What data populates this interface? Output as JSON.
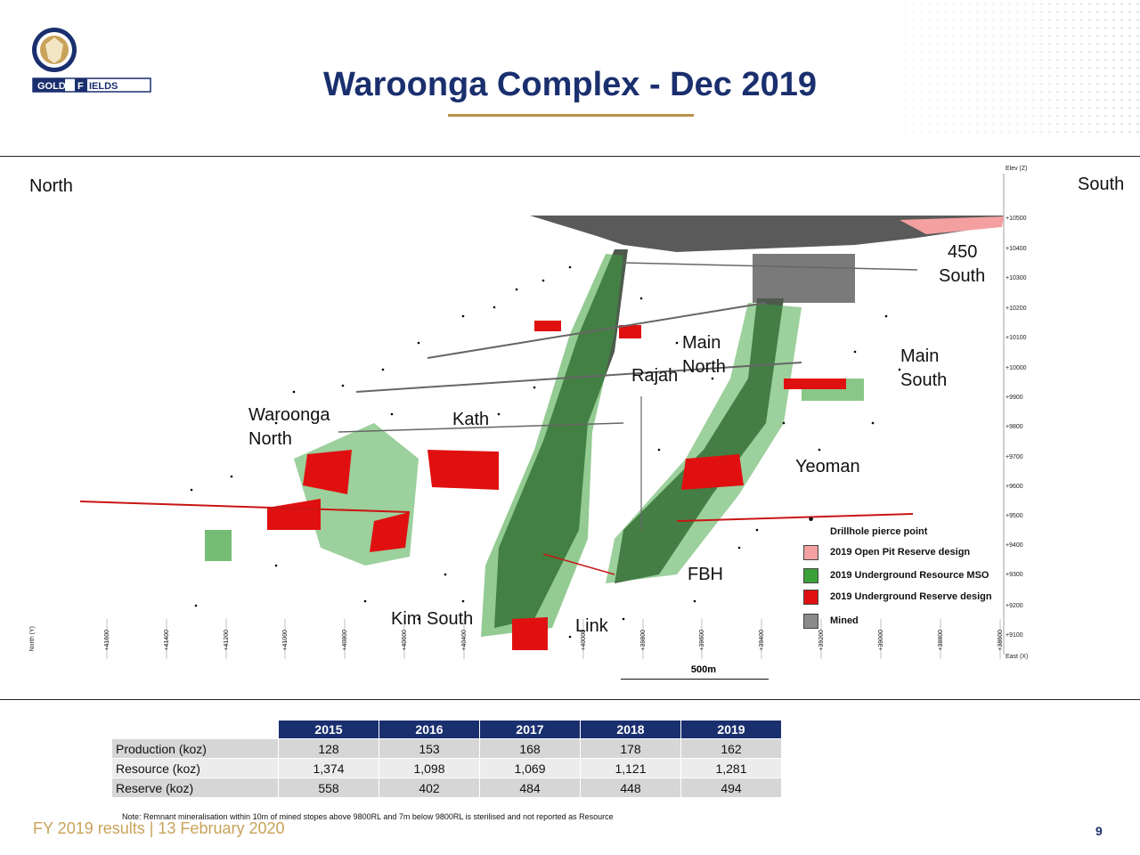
{
  "header": {
    "logo_text": "GOLD FIELDS",
    "title": "Waroonga Complex - Dec 2019"
  },
  "section": {
    "left_direction": "North",
    "right_direction": "South",
    "elevation_axis_label": "Elev (Z)",
    "elevation_ticks": [
      "+10500",
      "+10400",
      "+10300",
      "+10200",
      "+10100",
      "+10000",
      "+9900",
      "+9800",
      "+9700",
      "+9600",
      "+9500",
      "+9400",
      "+9300",
      "+9200",
      "+9100"
    ],
    "north_axis_label": "North (Y)",
    "north_ticks": [
      "+41600",
      "+41400",
      "+41200",
      "+41000",
      "+40800",
      "+40600",
      "+40400",
      "+40000",
      "+39800",
      "+39600",
      "+39400",
      "+39200",
      "+39000",
      "+38800",
      "+38600"
    ],
    "east_axis_label": "East (X)",
    "area_labels": {
      "s450": [
        "450",
        "South"
      ],
      "main_north": [
        "Main",
        "North"
      ],
      "rajah": "Rajah",
      "main_south": [
        "Main",
        "South"
      ],
      "waroonga_north": [
        "Waroonga",
        "North"
      ],
      "kath": "Kath",
      "yeoman": "Yeoman",
      "fbh": "FBH",
      "kim_south": "Kim South",
      "link": "Link"
    },
    "legend": [
      {
        "label": "Drillhole pierce point",
        "symbol": "dot"
      },
      {
        "label": "2019 Open Pit Reserve design",
        "color": "#f4a0a0"
      },
      {
        "label": "2019 Underground Resource MSO",
        "color": "#3aa13a"
      },
      {
        "label": "2019 Underground Reserve design",
        "color": "#e01010"
      },
      {
        "label": "Mined",
        "color": "#8a8a8a"
      }
    ],
    "scale_label": "500m"
  },
  "table": {
    "headers": [
      "",
      "2015",
      "2016",
      "2017",
      "2018",
      "2019"
    ],
    "rows": [
      {
        "label": "Production (koz)",
        "values": [
          "128",
          "153",
          "168",
          "178",
          "162"
        ]
      },
      {
        "label": "Resource (koz)",
        "values": [
          "1,374",
          "1,098",
          "1,069",
          "1,121",
          "1,281"
        ]
      },
      {
        "label": "Reserve (koz)",
        "values": [
          "558",
          "402",
          "484",
          "448",
          "494"
        ]
      }
    ]
  },
  "footer": {
    "note": "Note: Remnant mineralisation within 10m of mined stopes above 9800RL and 7m below 9800RL is sterilised and not reported as Resource",
    "left": "FY 2019 results | 13 February 2020",
    "page_number": "9"
  }
}
